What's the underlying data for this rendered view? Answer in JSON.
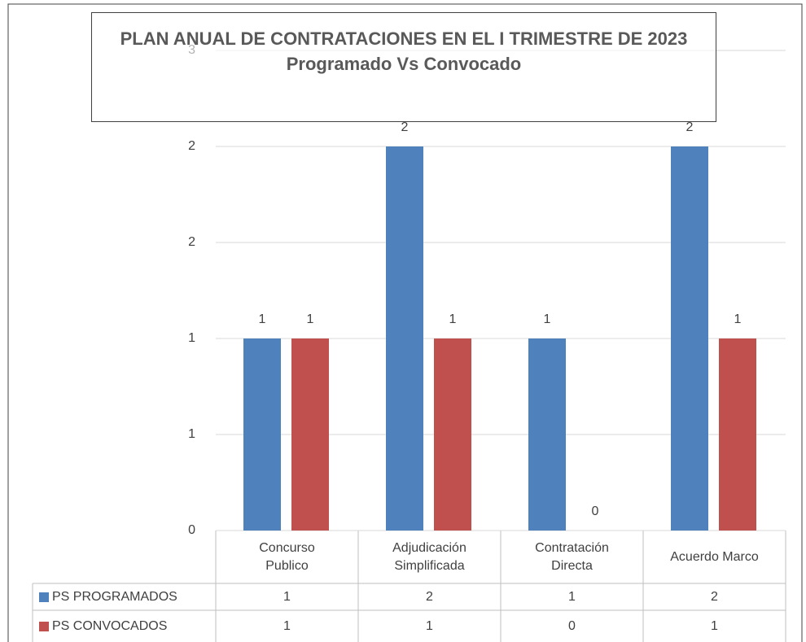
{
  "chart_data": {
    "type": "bar",
    "title": "PLAN ANUAL DE CONTRATACIONES EN EL I TRIMESTRE  DE 2023",
    "subtitle": "Programado Vs Convocado",
    "categories": [
      "Concurso\nPublico",
      "Adjudicación\nSimplificada",
      "Contratación\nDirecta",
      "Acuerdo Marco"
    ],
    "series": [
      {
        "name": "PS PROGRAMADOS",
        "color": "#4f81bd",
        "values": [
          1,
          2,
          1,
          2
        ]
      },
      {
        "name": "PS CONVOCADOS",
        "color": "#c0504d",
        "values": [
          1,
          1,
          0,
          1
        ]
      }
    ],
    "ylim": [
      0,
      2.5
    ],
    "yticks": [
      0,
      {
        "value": 0.5,
        "label": "1"
      },
      1,
      {
        "value": 1.5,
        "label": "2"
      },
      2,
      {
        "value": 2.5,
        "label": "3"
      }
    ],
    "grid": true,
    "data_labels": true,
    "data_table": true
  }
}
